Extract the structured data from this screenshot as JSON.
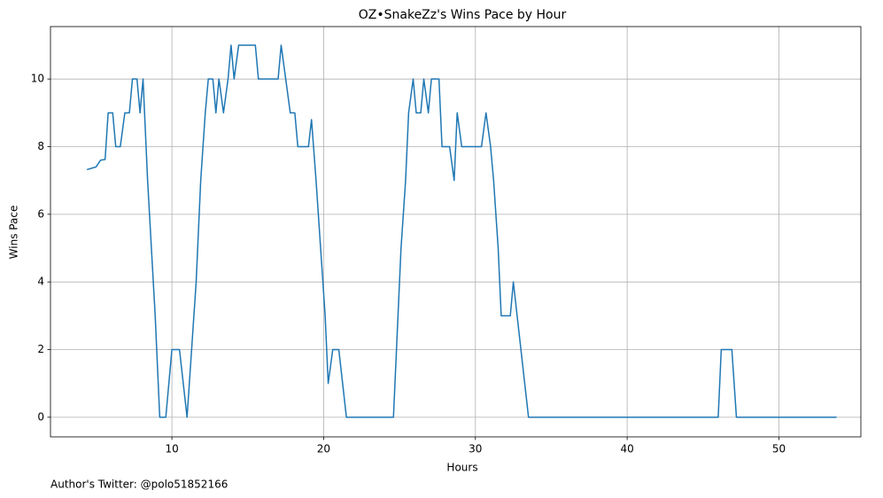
{
  "chart_data": {
    "type": "line",
    "title": "OZ•SnakeZz's Wins Pace by Hour",
    "xlabel": "Hours",
    "ylabel": "Wins Pace",
    "annotation": "Author's Twitter: @polo51852166",
    "grid": true,
    "xlim": [
      2.0,
      55.4
    ],
    "ylim": [
      -0.58,
      11.55
    ],
    "xticks": [
      10,
      20,
      30,
      40,
      50
    ],
    "yticks": [
      0,
      2,
      4,
      6,
      8,
      10
    ],
    "x": [
      4.4,
      5.0,
      5.3,
      5.6,
      5.8,
      6.1,
      6.3,
      6.6,
      6.9,
      7.2,
      7.4,
      7.7,
      7.9,
      8.1,
      8.4,
      8.9,
      9.2,
      9.6,
      10.0,
      10.5,
      11.0,
      11.6,
      11.9,
      12.2,
      12.4,
      12.7,
      12.9,
      13.1,
      13.4,
      13.7,
      13.9,
      14.1,
      14.4,
      15.5,
      15.7,
      17.0,
      17.2,
      17.5,
      17.8,
      18.1,
      18.3,
      19.0,
      19.2,
      19.5,
      19.8,
      20.1,
      20.3,
      20.6,
      21.0,
      21.5,
      24.6,
      24.8,
      25.1,
      25.4,
      25.6,
      25.9,
      26.1,
      26.4,
      26.6,
      26.9,
      27.1,
      27.6,
      27.8,
      28.3,
      28.6,
      28.8,
      29.1,
      30.4,
      30.7,
      31.0,
      31.2,
      31.5,
      31.7,
      32.3,
      32.5,
      33.0,
      33.5,
      46.0,
      46.2,
      46.9,
      47.2,
      53.8
    ],
    "series": [
      {
        "name": "Wins Pace",
        "color": "#1f77b4",
        "values": [
          7.32,
          7.4,
          7.6,
          7.62,
          9,
          9,
          8,
          8,
          9,
          9,
          10,
          10,
          9,
          10,
          7,
          3,
          0,
          0,
          2,
          2,
          0,
          4,
          7,
          9,
          10,
          10,
          9,
          10,
          9,
          10,
          11,
          10,
          11,
          11,
          10,
          10,
          11,
          10,
          9,
          9,
          8,
          8,
          8.8,
          7,
          5,
          3,
          1,
          2,
          2,
          0,
          0,
          2,
          5,
          7,
          9,
          10,
          9,
          9,
          10,
          9,
          10,
          10,
          8,
          8,
          7,
          9,
          8,
          8,
          9,
          8,
          7,
          5,
          3,
          3,
          4,
          2,
          0,
          0,
          2,
          2,
          0,
          0
        ]
      }
    ]
  }
}
